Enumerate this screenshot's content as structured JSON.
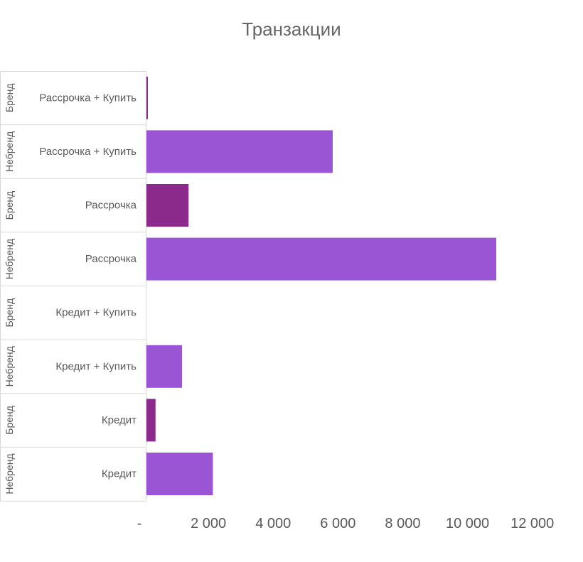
{
  "chart_data": {
    "type": "bar",
    "orientation": "horizontal",
    "title": "Транзакции",
    "xlabel": "",
    "ylabel": "",
    "xlim": [
      0,
      12000
    ],
    "x_ticks": [
      0,
      2000,
      4000,
      6000,
      8000,
      10000,
      12000
    ],
    "x_tick_labels": [
      "-",
      "2 000",
      "4 000",
      "6 000",
      "8 000",
      "10 000",
      "12 000"
    ],
    "grid": false,
    "legend": "none",
    "rows": [
      {
        "group": "Бренд",
        "category": "Рассрочка + Купить",
        "value": 30,
        "color": "#8b2a8b"
      },
      {
        "group": "Небренд",
        "category": "Рассрочка + Купить",
        "value": 5750,
        "color": "#9955d4"
      },
      {
        "group": "Бренд",
        "category": "Рассрочка",
        "value": 1300,
        "color": "#8b2a8b"
      },
      {
        "group": "Небренд",
        "category": "Рассрочка",
        "value": 10800,
        "color": "#9955d4"
      },
      {
        "group": "Бренд",
        "category": "Кредит + Купить",
        "value": 0,
        "color": "#8b2a8b"
      },
      {
        "group": "Небренд",
        "category": "Кредит + Купить",
        "value": 1100,
        "color": "#9955d4"
      },
      {
        "group": "Бренд",
        "category": "Кредит",
        "value": 280,
        "color": "#8b2a8b"
      },
      {
        "group": "Небренд",
        "category": "Кредит",
        "value": 2050,
        "color": "#9955d4"
      }
    ]
  }
}
